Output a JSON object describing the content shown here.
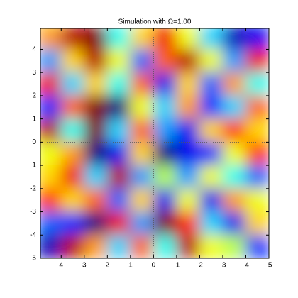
{
  "chart_data": {
    "type": "heatmap",
    "title": "Simulation with Ω=1.00",
    "colormap": "jet",
    "x": [
      4.5,
      3.5,
      2.5,
      1.5,
      0.5,
      -0.5,
      -1.5,
      -2.5,
      -3.5,
      -4.5
    ],
    "y": [
      4.5,
      3.5,
      2.5,
      1.5,
      0.5,
      -0.5,
      -1.5,
      -2.5,
      -3.5,
      -4.5
    ],
    "z": [
      [
        0.4,
        0.8,
        0.9,
        -0.2,
        0.3,
        0.7,
        0.2,
        -0.3,
        -0.8,
        -0.7
      ],
      [
        -0.4,
        0.3,
        0.8,
        0.2,
        -0.5,
        0.5,
        0.8,
        0.2,
        -0.4,
        0.7
      ],
      [
        0.7,
        -0.3,
        0.3,
        -0.2,
        0.5,
        -0.7,
        0.3,
        -0.5,
        0.4,
        -0.2
      ],
      [
        -0.6,
        0.5,
        0.9,
        -0.9,
        0.2,
        -0.3,
        0.4,
        -0.6,
        -0.3,
        0.5
      ],
      [
        0.8,
        -0.2,
        0.9,
        -0.3,
        0.5,
        -0.4,
        -0.7,
        0.3,
        0.6,
        0.3
      ],
      [
        0.2,
        0.4,
        -0.9,
        -0.7,
        0.3,
        -0.9,
        -0.7,
        -0.6,
        0.2,
        0.6
      ],
      [
        0.3,
        0.7,
        -0.3,
        0.8,
        -0.4,
        0.1,
        -0.4,
        0.2,
        -0.2,
        -0.5
      ],
      [
        0.6,
        0.3,
        0.5,
        -0.5,
        0.3,
        -0.7,
        0.2,
        -0.7,
        0.4,
        0.2
      ],
      [
        -0.5,
        -0.6,
        -0.9,
        0.7,
        -0.4,
        0.9,
        0.6,
        -0.3,
        -0.7,
        0.3
      ],
      [
        -0.8,
        0.8,
        0.4,
        -0.3,
        0.5,
        -0.2,
        0.8,
        0.2,
        0.1,
        -0.6
      ]
    ],
    "xlim": [
      4.9,
      -5
    ],
    "ylim": [
      -5,
      4.9
    ],
    "xticks": [
      4,
      3,
      2,
      1,
      0,
      -1,
      -2,
      -3,
      -4,
      -5
    ],
    "yticks": [
      -5,
      -4,
      -3,
      -2,
      -1,
      0,
      1,
      2,
      3,
      4
    ]
  }
}
